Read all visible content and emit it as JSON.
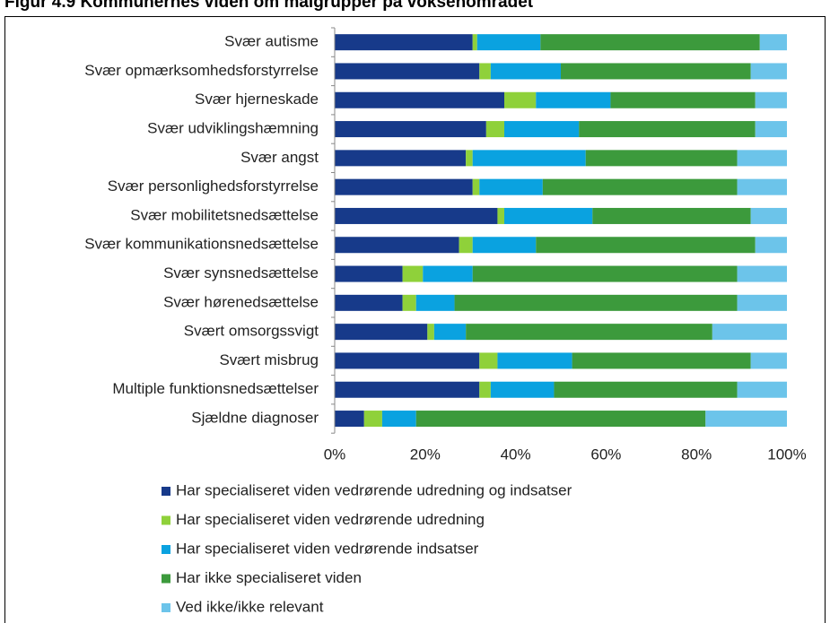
{
  "chart_data": {
    "type": "stacked_bar_horizontal",
    "title": "Figur 4.9 Kommunernes viden om målgrupper på voksenområdet",
    "categories": [
      "Svær autisme",
      "Svær opmærksomhedsforstyrrelse",
      "Svær hjerneskade",
      "Svær udviklingshæmning",
      "Svær angst",
      "Svær personlighedsforstyrrelse",
      "Svær mobilitetsnedsættelse",
      "Svær kommunikationsnedsættelse",
      "Svær synsnedsættelse",
      "Svær hørenedsættelse",
      "Svært omsorgssvigt",
      "Svært misbrug",
      "Multiple funktionsnedsættelser",
      "Sjældne diagnoser"
    ],
    "series": [
      {
        "name": "Har specialiseret viden vedrørende udredning og indsatser",
        "color": "#173a8a",
        "values": [
          30.5,
          32,
          37.5,
          33.5,
          29,
          30.5,
          36,
          27.5,
          15,
          15,
          20.5,
          32,
          32,
          6.5
        ]
      },
      {
        "name": "Har specialiseret viden vedrørende udredning",
        "color": "#8fd13a",
        "values": [
          1,
          2.5,
          7,
          4,
          1.5,
          1.5,
          1.5,
          3,
          4.5,
          3,
          1.5,
          4,
          2.5,
          4
        ]
      },
      {
        "name": "Har specialiseret viden vedrørende indsatser",
        "color": "#0aa2e0",
        "values": [
          14,
          15.5,
          16.5,
          16.5,
          25,
          14,
          19.5,
          14,
          11,
          8.5,
          7,
          16.5,
          14,
          7.5
        ]
      },
      {
        "name": "Har ikke specialiseret viden",
        "color": "#3c9a3c",
        "values": [
          48.5,
          42,
          32,
          39,
          33.5,
          43,
          35,
          48.5,
          58.5,
          62.5,
          54.5,
          39.5,
          40.5,
          64
        ]
      },
      {
        "name": "Ved ikke/ikke relevant",
        "color": "#6cc4ea",
        "values": [
          6,
          8,
          7,
          7,
          11,
          11,
          8,
          7,
          11,
          11,
          16.5,
          8,
          11,
          18
        ]
      }
    ],
    "xlim": [
      0,
      100
    ],
    "xticks": [
      {
        "value": 0,
        "label": "0%"
      },
      {
        "value": 20,
        "label": "20%"
      },
      {
        "value": 40,
        "label": "40%"
      },
      {
        "value": 60,
        "label": "60%"
      },
      {
        "value": 80,
        "label": "80%"
      },
      {
        "value": 100,
        "label": "100%"
      }
    ]
  }
}
